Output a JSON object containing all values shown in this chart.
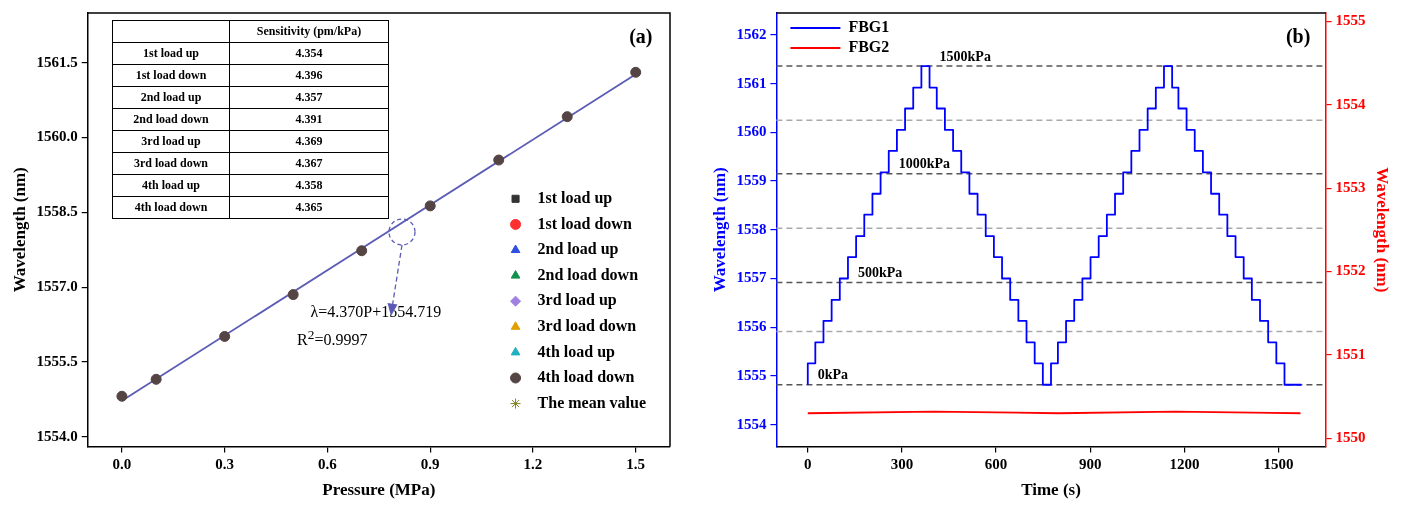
{
  "chart_data": [
    {
      "type": "scatter",
      "xlabel": "Pressure (MPa)",
      "ylabel": "Wavelength (nm)",
      "x": [
        0,
        0.1,
        0.3,
        0.5,
        0.7,
        0.9,
        1.1,
        1.3,
        1.5
      ],
      "xlim": [
        -0.1,
        1.6
      ],
      "xticks": [
        {
          "value": 0,
          "label": "0.0"
        },
        0.3,
        0.6,
        0.9,
        1.2,
        1.5
      ],
      "ylim": [
        1553.8,
        1562.5
      ],
      "yticks": [
        {
          "value": 1554,
          "label": "1554.0"
        },
        1555.5,
        {
          "value": 1557,
          "label": "1557.0"
        },
        1558.5,
        {
          "value": 1560,
          "label": "1560.0"
        },
        1561.5
      ],
      "legend": "bottom right",
      "series": [
        {
          "name": "1st load up",
          "color": "#333333",
          "marker": "square",
          "values": [
            null,
            null,
            null,
            null,
            null,
            null,
            null,
            null,
            null
          ]
        },
        {
          "name": "1st load down",
          "color": "#ff3030",
          "marker": "circle",
          "values": [
            null,
            null,
            null,
            null,
            null,
            null,
            null,
            null,
            null
          ]
        },
        {
          "name": "2nd load up",
          "color": "#3050e0",
          "marker": "triangle",
          "values": [
            null,
            null,
            null,
            null,
            null,
            null,
            null,
            null,
            null
          ]
        },
        {
          "name": "2nd load down",
          "color": "#109050",
          "marker": "triangle",
          "values": [
            null,
            null,
            null,
            null,
            null,
            null,
            null,
            null,
            null
          ]
        },
        {
          "name": "3rd load up",
          "color": "#a080e0",
          "marker": "diamond",
          "values": [
            null,
            null,
            null,
            null,
            null,
            null,
            null,
            null,
            null
          ]
        },
        {
          "name": "3rd load down",
          "color": "#e0a000",
          "marker": "triangle",
          "values": [
            null,
            null,
            null,
            null,
            null,
            null,
            null,
            null,
            null
          ]
        },
        {
          "name": "4th load up",
          "color": "#20b0c0",
          "marker": "triangle",
          "values": [
            null,
            null,
            null,
            null,
            null,
            null,
            null,
            null,
            null
          ]
        },
        {
          "name": "4th load down",
          "color": "#554444",
          "marker": "circle",
          "values": [
            1554.81,
            1555.15,
            1556.01,
            1556.85,
            1557.73,
            1558.63,
            1559.55,
            1560.42,
            1561.31
          ]
        },
        {
          "name": "The mean value",
          "color": "#808020",
          "marker": "star",
          "values": [
            null,
            null,
            null,
            null,
            null,
            null,
            null,
            null,
            null
          ]
        },
        {
          "type": "line",
          "color": "#5b5bb5",
          "x": [
            0,
            1.5
          ],
          "values": [
            1554.72,
            1561.27
          ]
        }
      ],
      "annotations": [
        "(a)",
        "λ=4.370P+1554.719",
        "R$^{2}$=0.9997"
      ]
    },
    {
      "type": "other",
      "title": "Sensitivity (pm/kPa)",
      "annotations": [
        "1st load up",
        "4.354",
        "1st load down",
        "4.396",
        "2nd load up",
        "4.357",
        "2nd load down",
        "4.391",
        "3rd load up",
        "4.369",
        "3rd load down",
        "4.367",
        "4th load up",
        "4.358",
        "4th load down",
        "4.365"
      ]
    },
    {
      "type": "step",
      "xlabel": "Time (s)",
      "ylabel": "Wavelength (nm)",
      "y2label": "Wavelength (nm)",
      "xlim": [
        -100,
        1650
      ],
      "xticks": [
        0,
        300,
        600,
        900,
        1200,
        1500
      ],
      "ylim": [
        1553.55,
        1562.45
      ],
      "yticks": [
        1554,
        1555,
        1556,
        1557,
        1558,
        1559,
        1560,
        1561,
        1562
      ],
      "y2lim": [
        1549.9,
        1555.1
      ],
      "y2ticks": [
        1550,
        1551,
        1552,
        1553,
        1554,
        1555
      ],
      "legend": "top left",
      "series": [
        {
          "name": "FBG1",
          "color": "#0000ff",
          "x": [
            0,
            24,
            50,
            76,
            102,
            128,
            154,
            180,
            206,
            232,
            258,
            284,
            310,
            336,
            362,
            388,
            411,
            437,
            463,
            489,
            515,
            541,
            567,
            593,
            619,
            645,
            671,
            697,
            723,
            749,
            775,
            797,
            823,
            849,
            875,
            901,
            927,
            953,
            979,
            1005,
            1031,
            1057,
            1083,
            1109,
            1135,
            1161,
            1181,
            1207,
            1233,
            1259,
            1285,
            1311,
            1337,
            1363,
            1389,
            1415,
            1441,
            1467,
            1493,
            1519,
            1545,
            1573
          ],
          "values": [
            1554.82,
            1555.26,
            1555.69,
            1556.13,
            1556.56,
            1557.0,
            1557.44,
            1557.87,
            1558.31,
            1558.74,
            1559.18,
            1559.62,
            1560.05,
            1560.49,
            1560.92,
            1561.36,
            1560.92,
            1560.49,
            1560.05,
            1559.62,
            1559.18,
            1558.74,
            1558.31,
            1557.87,
            1557.44,
            1557.0,
            1556.56,
            1556.13,
            1555.69,
            1555.26,
            1554.82,
            1555.26,
            1555.69,
            1556.13,
            1556.56,
            1557.0,
            1557.44,
            1557.87,
            1558.31,
            1558.74,
            1559.18,
            1559.62,
            1560.05,
            1560.49,
            1560.92,
            1561.36,
            1560.92,
            1560.49,
            1560.05,
            1559.62,
            1559.18,
            1558.74,
            1558.31,
            1557.87,
            1557.44,
            1557.0,
            1556.56,
            1556.13,
            1555.69,
            1555.26,
            1554.82,
            1554.82
          ]
        },
        {
          "name": "FBG2",
          "type": "line",
          "axis": "y2",
          "color": "#ff0000",
          "x": [
            0,
            400,
            800,
            1170,
            1570
          ],
          "values": [
            1550.3,
            1550.32,
            1550.3,
            1550.32,
            1550.3
          ]
        }
      ],
      "ref_lines": [
        {
          "axis": "y",
          "value": 1554.82,
          "label": "0kPa",
          "color": "#555555",
          "line_style": "dashed"
        },
        {
          "axis": "y",
          "value": 1555.91,
          "color": "#aaaaaa",
          "line_style": "dashed"
        },
        {
          "axis": "y",
          "value": 1556.92,
          "label": "500kPa",
          "color": "#555555",
          "line_style": "dashed"
        },
        {
          "axis": "y",
          "value": 1558.03,
          "color": "#aaaaaa",
          "line_style": "dashed"
        },
        {
          "axis": "y",
          "value": 1559.15,
          "label": "1000kPa",
          "color": "#555555",
          "line_style": "dashed"
        },
        {
          "axis": "y",
          "value": 1560.25,
          "color": "#aaaaaa",
          "line_style": "dashed"
        },
        {
          "axis": "y",
          "value": 1561.36,
          "label": "1500kPa",
          "color": "#555555",
          "line_style": "dashed"
        }
      ],
      "annotations": [
        "(b)"
      ]
    }
  ]
}
